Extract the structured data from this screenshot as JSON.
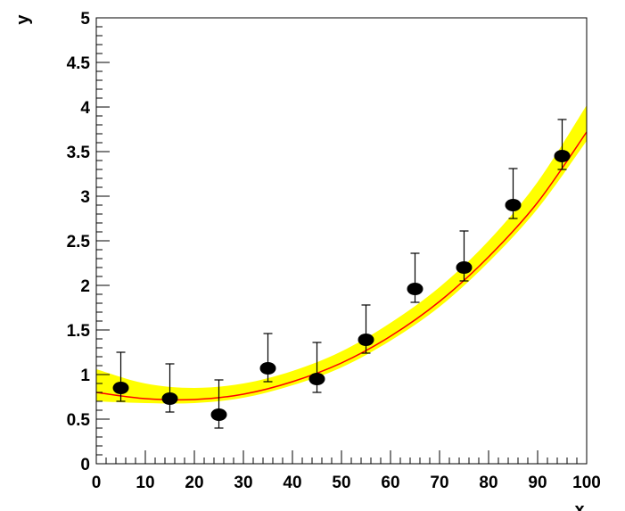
{
  "chart_data": {
    "type": "scatter",
    "title": "",
    "xlabel": "x",
    "ylabel": "y",
    "xlim": [
      0,
      100
    ],
    "ylim": [
      0,
      5
    ],
    "grid": false,
    "x_ticks": [
      0,
      10,
      20,
      30,
      40,
      50,
      60,
      70,
      80,
      90,
      100
    ],
    "y_ticks": [
      0,
      0.5,
      1,
      1.5,
      2,
      2.5,
      3,
      3.5,
      4,
      4.5,
      5
    ],
    "x_tick_labels": [
      "0",
      "10",
      "20",
      "30",
      "40",
      "50",
      "60",
      "70",
      "80",
      "90",
      "100"
    ],
    "y_tick_labels": [
      "0",
      "0.5",
      "1",
      "1.5",
      "2",
      "2.5",
      "3",
      "3.5",
      "4",
      "4.5",
      "5"
    ],
    "series": [
      {
        "type": "scatter",
        "x": [
          5,
          15,
          25,
          35,
          45,
          55,
          65,
          75,
          85,
          95
        ],
        "y": [
          0.85,
          0.73,
          0.55,
          1.07,
          0.95,
          1.39,
          1.96,
          2.2,
          2.9,
          3.45
        ],
        "yerr_up": [
          0.4,
          0.39,
          0.39,
          0.39,
          0.41,
          0.39,
          0.4,
          0.41,
          0.41,
          0.41
        ],
        "yerr_down": [
          0.15,
          0.15,
          0.15,
          0.15,
          0.15,
          0.15,
          0.15,
          0.15,
          0.15,
          0.15
        ],
        "color": "#000000"
      },
      {
        "type": "line",
        "x": [
          0,
          10,
          20,
          30,
          40,
          50,
          60,
          70,
          80,
          90,
          100
        ],
        "y": [
          0.8,
          0.73,
          0.72,
          0.78,
          0.92,
          1.13,
          1.43,
          1.82,
          2.32,
          2.93,
          3.72
        ],
        "color": "#ff0000"
      },
      {
        "type": "area",
        "x": [
          0,
          10,
          20,
          30,
          40,
          50,
          60,
          70,
          80,
          90,
          100
        ],
        "lower": [
          0.7,
          0.68,
          0.68,
          0.74,
          0.88,
          1.08,
          1.38,
          1.76,
          2.26,
          2.86,
          3.62
        ],
        "upper": [
          1.06,
          0.9,
          0.85,
          0.9,
          1.04,
          1.26,
          1.58,
          1.98,
          2.5,
          3.16,
          4.02
        ],
        "color": "#ffff00"
      }
    ]
  }
}
